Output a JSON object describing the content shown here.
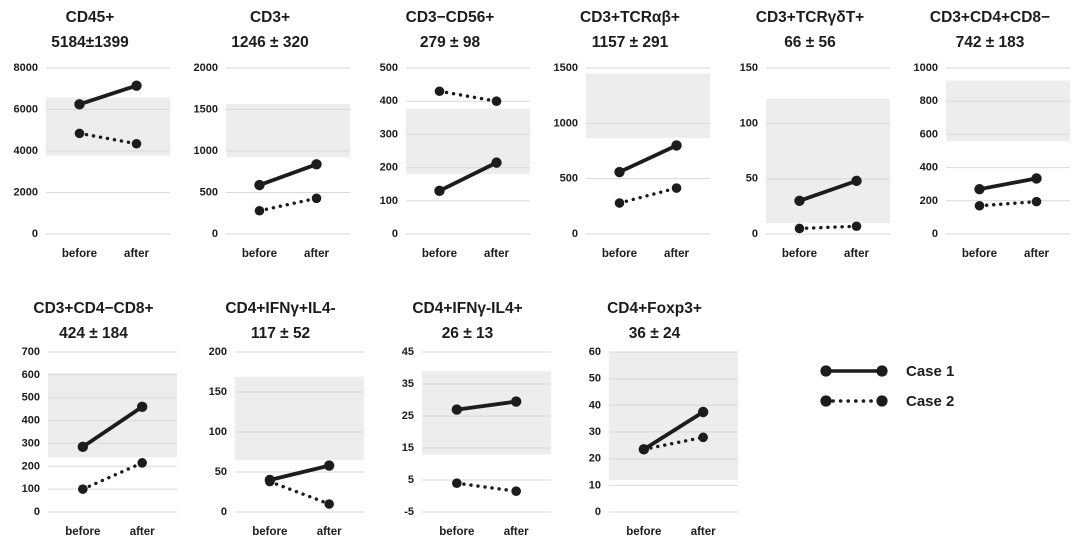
{
  "figure": {
    "x_categories": [
      "before",
      "after"
    ],
    "legend": [
      {
        "label": "Case 1",
        "style": "solid"
      },
      {
        "label": "Case 2",
        "style": "dotted"
      }
    ],
    "colors": {
      "line": "#1c1c1c",
      "text": "#1c1c1c",
      "band": "#ededed",
      "grid": "#d9d9d9",
      "background": "#ffffff"
    }
  },
  "chart_data": [
    {
      "type": "line",
      "row": 1,
      "title": "CD45+",
      "subtitle": "5184±1399",
      "mean": 5184,
      "sd": 1399,
      "ylim": [
        0,
        8000
      ],
      "yticks": [
        0,
        2000,
        4000,
        6000,
        8000
      ],
      "band": [
        3785,
        6583
      ],
      "x": [
        "before",
        "after"
      ],
      "series": [
        {
          "name": "Case 1",
          "style": "solid",
          "values": [
            6250,
            7150
          ]
        },
        {
          "name": "Case 2",
          "style": "dotted",
          "values": [
            4850,
            4350
          ]
        }
      ]
    },
    {
      "type": "line",
      "row": 1,
      "title": "CD3+",
      "subtitle": "1246 ± 320",
      "mean": 1246,
      "sd": 320,
      "ylim": [
        0,
        2000
      ],
      "yticks": [
        0,
        500,
        1000,
        1500,
        2000
      ],
      "band": [
        926,
        1566
      ],
      "x": [
        "before",
        "after"
      ],
      "series": [
        {
          "name": "Case 1",
          "style": "solid",
          "values": [
            590,
            840
          ]
        },
        {
          "name": "Case 2",
          "style": "dotted",
          "values": [
            280,
            430
          ]
        }
      ]
    },
    {
      "type": "line",
      "row": 1,
      "title": "CD3−CD56+",
      "subtitle": "279 ± 98",
      "mean": 279,
      "sd": 98,
      "ylim": [
        0,
        500
      ],
      "yticks": [
        0,
        100,
        200,
        300,
        400,
        500
      ],
      "band": [
        181,
        377
      ],
      "x": [
        "before",
        "after"
      ],
      "series": [
        {
          "name": "Case 1",
          "style": "solid",
          "values": [
            130,
            215
          ]
        },
        {
          "name": "Case 2",
          "style": "dotted",
          "values": [
            430,
            400
          ]
        }
      ]
    },
    {
      "type": "line",
      "row": 1,
      "title": "CD3+TCRαβ+",
      "subtitle": "1157 ± 291",
      "mean": 1157,
      "sd": 291,
      "ylim": [
        0,
        1500
      ],
      "yticks": [
        0,
        500,
        1000,
        1500
      ],
      "band": [
        866,
        1448
      ],
      "x": [
        "before",
        "after"
      ],
      "series": [
        {
          "name": "Case 1",
          "style": "solid",
          "values": [
            560,
            800
          ]
        },
        {
          "name": "Case 2",
          "style": "dotted",
          "values": [
            280,
            415
          ]
        }
      ]
    },
    {
      "type": "line",
      "row": 1,
      "title": "CD3+TCRγδT+",
      "subtitle": "66 ± 56",
      "mean": 66,
      "sd": 56,
      "ylim": [
        0,
        150
      ],
      "yticks": [
        0,
        50,
        100,
        150
      ],
      "band": [
        10,
        122
      ],
      "x": [
        "before",
        "after"
      ],
      "series": [
        {
          "name": "Case 1",
          "style": "solid",
          "values": [
            30,
            48
          ]
        },
        {
          "name": "Case 2",
          "style": "dotted",
          "values": [
            5,
            7
          ]
        }
      ]
    },
    {
      "type": "line",
      "row": 1,
      "title": "CD3+CD4+CD8−",
      "subtitle": "742 ± 183",
      "mean": 742,
      "sd": 183,
      "ylim": [
        0,
        1000
      ],
      "yticks": [
        0,
        200,
        400,
        600,
        800,
        1000
      ],
      "band": [
        559,
        925
      ],
      "x": [
        "before",
        "after"
      ],
      "series": [
        {
          "name": "Case 1",
          "style": "solid",
          "values": [
            270,
            335
          ]
        },
        {
          "name": "Case 2",
          "style": "dotted",
          "values": [
            170,
            195
          ]
        }
      ]
    },
    {
      "type": "line",
      "row": 2,
      "title": "CD3+CD4−CD8+",
      "subtitle": "424 ± 184",
      "mean": 424,
      "sd": 184,
      "ylim": [
        0,
        700
      ],
      "yticks": [
        0,
        100,
        200,
        300,
        400,
        500,
        600,
        700
      ],
      "band": [
        240,
        608
      ],
      "x": [
        "before",
        "after"
      ],
      "series": [
        {
          "name": "Case 1",
          "style": "solid",
          "values": [
            285,
            460
          ]
        },
        {
          "name": "Case 2",
          "style": "dotted",
          "values": [
            100,
            215
          ]
        }
      ]
    },
    {
      "type": "line",
      "row": 2,
      "title": "CD4+IFNγ+IL4-",
      "subtitle": "117 ± 52",
      "mean": 117,
      "sd": 52,
      "ylim": [
        0,
        200
      ],
      "yticks": [
        0,
        50,
        100,
        150,
        200
      ],
      "band": [
        65,
        169
      ],
      "x": [
        "before",
        "after"
      ],
      "series": [
        {
          "name": "Case 1",
          "style": "solid",
          "values": [
            40,
            58
          ]
        },
        {
          "name": "Case 2",
          "style": "dotted",
          "values": [
            38,
            10
          ]
        }
      ]
    },
    {
      "type": "line",
      "row": 2,
      "title": "CD4+IFNγ-IL4+",
      "subtitle": "26 ± 13",
      "mean": 26,
      "sd": 13,
      "ylim": [
        -5,
        45
      ],
      "yticks": [
        -5,
        5,
        15,
        25,
        35,
        45
      ],
      "band": [
        13,
        39
      ],
      "x": [
        "before",
        "after"
      ],
      "series": [
        {
          "name": "Case 1",
          "style": "solid",
          "values": [
            27,
            29.5
          ]
        },
        {
          "name": "Case 2",
          "style": "dotted",
          "values": [
            4,
            1.5
          ]
        }
      ]
    },
    {
      "type": "line",
      "row": 2,
      "title": "CD4+Foxp3+",
      "subtitle": "36 ± 24",
      "mean": 36,
      "sd": 24,
      "ylim": [
        0,
        60
      ],
      "yticks": [
        0,
        10,
        20,
        30,
        40,
        50,
        60
      ],
      "band": [
        12,
        60
      ],
      "x": [
        "before",
        "after"
      ],
      "series": [
        {
          "name": "Case 1",
          "style": "solid",
          "values": [
            23.5,
            37.5
          ]
        },
        {
          "name": "Case 2",
          "style": "dotted",
          "values": [
            23.5,
            28
          ]
        }
      ]
    }
  ]
}
